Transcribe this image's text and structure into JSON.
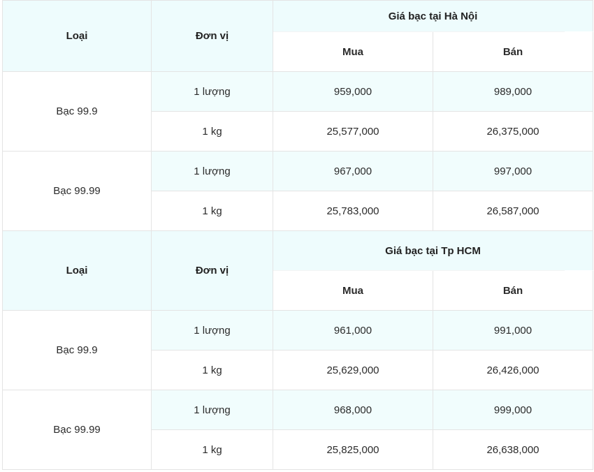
{
  "sections": [
    {
      "header": {
        "col_type": "Loại",
        "col_unit": "Đơn vị",
        "title": "Giá bạc tại Hà Nội",
        "buy": "Mua",
        "sell": "Bán"
      },
      "groups": [
        {
          "type": "Bạc 99.9",
          "rows": [
            {
              "unit": "1 lượng",
              "buy": "959,000",
              "sell": "989,000"
            },
            {
              "unit": "1 kg",
              "buy": "25,577,000",
              "sell": "26,375,000"
            }
          ]
        },
        {
          "type": "Bạc 99.99",
          "rows": [
            {
              "unit": "1 lượng",
              "buy": "967,000",
              "sell": "997,000"
            },
            {
              "unit": "1 kg",
              "buy": "25,783,000",
              "sell": "26,587,000"
            }
          ]
        }
      ]
    },
    {
      "header": {
        "col_type": "Loại",
        "col_unit": "Đơn vị",
        "title": "Giá bạc tại Tp HCM",
        "buy": "Mua",
        "sell": "Bán"
      },
      "groups": [
        {
          "type": "Bạc 99.9",
          "rows": [
            {
              "unit": "1 lượng",
              "buy": "961,000",
              "sell": "991,000"
            },
            {
              "unit": "1 kg",
              "buy": "25,629,000",
              "sell": "26,426,000"
            }
          ]
        },
        {
          "type": "Bạc 99.99",
          "rows": [
            {
              "unit": "1 lượng",
              "buy": "968,000",
              "sell": "999,000"
            },
            {
              "unit": "1 kg",
              "buy": "25,825,000",
              "sell": "26,638,000"
            }
          ]
        }
      ]
    }
  ]
}
